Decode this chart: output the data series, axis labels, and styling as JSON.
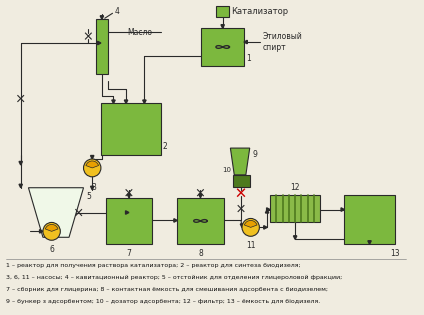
{
  "background_color": "#f0ece0",
  "legend_lines": [
    "1 – реактор для получения раствора катализатора; 2 – реактор для синтеза биодизеля;",
    "3, 6, 11 – насосы; 4 – кавитационный реактор; 5 – отстойник для отделения глицероловой фракции;",
    "7 – сборник для глицерина; 8 – контактная ёмкость для смешивания адсорбента с биодизелем;",
    "9 – бункер з адсорбентом; 10 – дозатор адсорбента; 12 – фильтр; 13 – ёмкость для біодизеля."
  ],
  "green_color": "#7cb83e",
  "dark_green_color": "#4e7a1e",
  "yellow_color": "#f0c020",
  "light_green_white": "#e8f4d8",
  "line_color": "#2a2a2a",
  "red_color": "#cc0000",
  "stripe_green": "#8aba48",
  "stripe_dark": "#4e7a1e"
}
